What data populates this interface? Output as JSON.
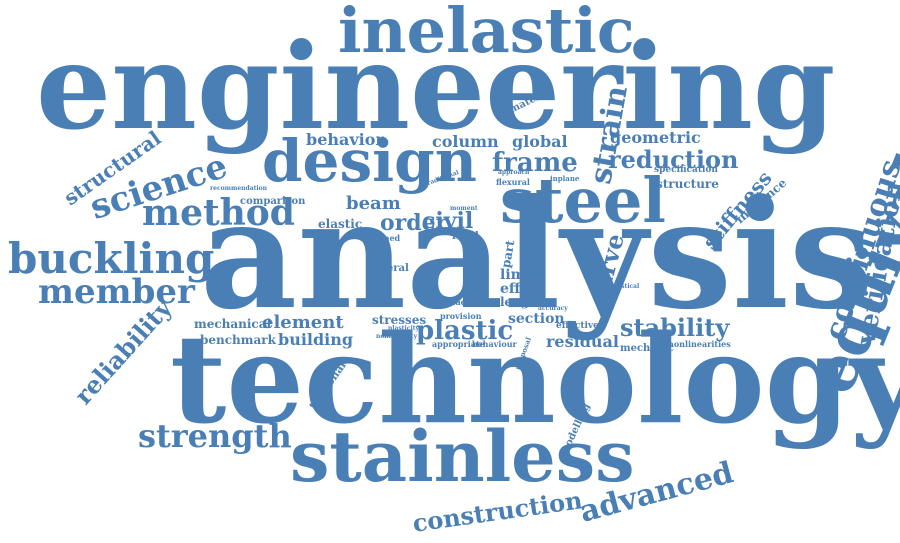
{
  "colors": {
    "text": "#4a7fb5",
    "background": "#ffffff"
  },
  "words": [
    "engineering",
    "analysis",
    "technology",
    "inelastic",
    "stainless",
    "design",
    "steel",
    "equivalent",
    "buckling",
    "member",
    "method",
    "science",
    "strength",
    "structural",
    "continuous",
    "verification",
    "reliability",
    "strain",
    "frame",
    "reduction",
    "stability",
    "plastic",
    "advanced",
    "construction",
    "stiffness",
    "curve",
    "behavior",
    "column",
    "global",
    "geometric",
    "beam",
    "order",
    "civil",
    "element",
    "building",
    "mechanical",
    "benchmark",
    "stresses",
    "section",
    "residual",
    "limit",
    "effect",
    "length",
    "local",
    "influence",
    "structure",
    "specification",
    "elastic",
    "material",
    "comparison",
    "recommendation",
    "lateral",
    "torsional",
    "modelling",
    "mechanic",
    "nonlinearities",
    "effective",
    "provision",
    "behaviour",
    "appropriate",
    "nonlinearity",
    "plasticity",
    "proposal",
    "flexural",
    "approach",
    "inplane",
    "factor",
    "part",
    "statistical",
    "formed",
    "moment",
    "traditional",
    "accuracy"
  ]
}
